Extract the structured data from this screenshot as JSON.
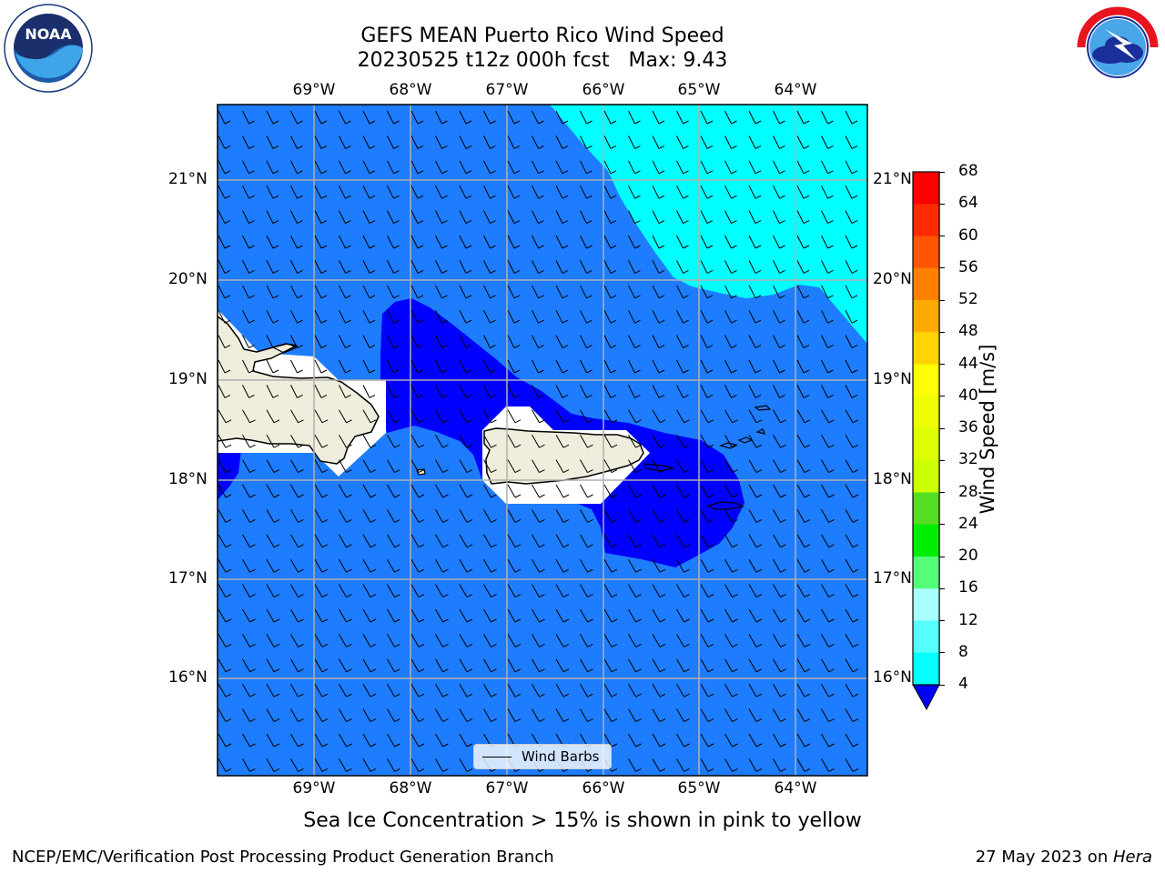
{
  "title": {
    "line1": "GEFS MEAN Puerto Rico Wind Speed",
    "line2": "20230525 t12z 000h fcst   Max: 9.43"
  },
  "logos": {
    "left": "NOAA",
    "right_text": "NATIONAL WEATHER SERVICE"
  },
  "map": {
    "lon_labels": [
      "69°W",
      "68°W",
      "67°W",
      "66°W",
      "65°W",
      "64°W"
    ],
    "lat_labels": [
      "21°N",
      "20°N",
      "19°N",
      "18°N",
      "17°N",
      "16°N"
    ],
    "legend_label": "Wind Barbs",
    "fill_colors": {
      "4-8": "#1e7cff",
      "8-12": "#00ffff",
      "below-4": "#0000ff",
      "land": "#efeddb"
    }
  },
  "colorbar": {
    "label": "Wind Speed [m/s]",
    "ticks": [
      "68",
      "64",
      "60",
      "56",
      "52",
      "48",
      "44",
      "40",
      "36",
      "32",
      "28",
      "24",
      "20",
      "16",
      "12",
      "8",
      "4"
    ],
    "colors": [
      "#ff0000",
      "#ff2a00",
      "#ff5500",
      "#ff8000",
      "#ffaa00",
      "#ffd400",
      "#ffff00",
      "#eeff00",
      "#ddff00",
      "#ccff00",
      "#55dd22",
      "#00ee00",
      "#55ff77",
      "#aaffff",
      "#55ffff",
      "#00ffff",
      "#1e7cff"
    ],
    "under_color": "#0000ff"
  },
  "note": "Sea Ice Concentration > 15% is shown in pink to yellow",
  "footer": {
    "left": "NCEP/EMC/Verification Post Processing Product Generation Branch",
    "date": "27 May 2023 on ",
    "host": "Hera"
  }
}
